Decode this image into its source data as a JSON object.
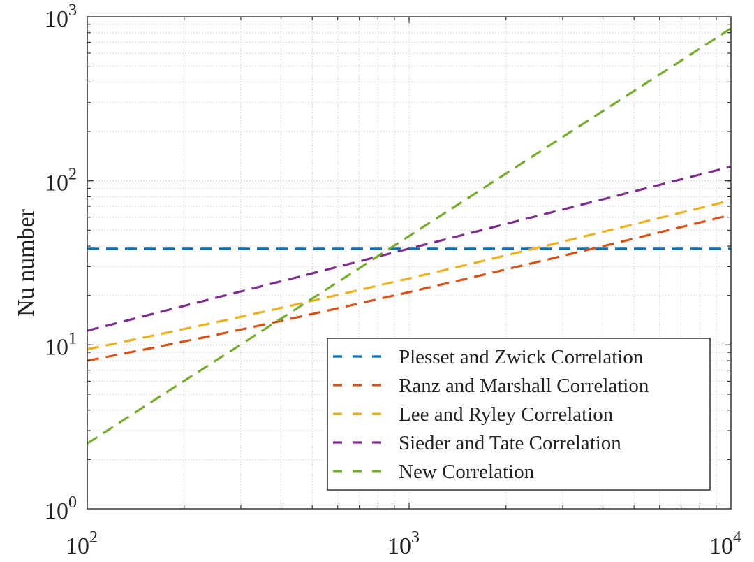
{
  "chart_data": {
    "type": "line",
    "title": "",
    "xlabel": "",
    "ylabel": "Nu number",
    "xscale": "log",
    "yscale": "log",
    "xlim": [
      100,
      10000
    ],
    "ylim": [
      1,
      1000
    ],
    "grid": true,
    "legend_position": "bottom-right",
    "x_ticks": [
      {
        "value": 100,
        "base": "10",
        "exp": "2"
      },
      {
        "value": 1000,
        "base": "10",
        "exp": "3"
      },
      {
        "value": 10000,
        "base": "10",
        "exp": "4"
      }
    ],
    "y_ticks": [
      {
        "value": 1,
        "base": "10",
        "exp": "0"
      },
      {
        "value": 10,
        "base": "10",
        "exp": "1"
      },
      {
        "value": 100,
        "base": "10",
        "exp": "2"
      },
      {
        "value": 1000,
        "base": "10",
        "exp": "3"
      }
    ],
    "x": [
      100,
      158,
      251,
      398,
      631,
      1000,
      1585,
      2512,
      3981,
      6310,
      10000
    ],
    "series": [
      {
        "name": "Plesset and Zwick Correlation",
        "color": "#0072BD",
        "values": [
          38.5,
          38.5,
          38.5,
          38.5,
          38.5,
          38.5,
          38.5,
          38.5,
          38.5,
          38.5,
          38.5
        ]
      },
      {
        "name": "Ranz and Marshall Correlation",
        "color": "#D95319",
        "values": [
          8.0,
          9.55,
          11.5,
          13.97,
          17.07,
          20.97,
          25.89,
          32.07,
          39.86,
          49.66,
          62.0
        ]
      },
      {
        "name": "Lee and Ryley Correlation",
        "color": "#EDB120",
        "values": [
          9.4,
          11.32,
          13.73,
          16.76,
          20.59,
          25.4,
          31.46,
          39.09,
          48.69,
          60.78,
          76.0
        ]
      },
      {
        "name": "Sieder and Tate Correlation",
        "color": "#7E2F8E",
        "values": [
          12.2,
          15.36,
          19.34,
          24.34,
          30.65,
          38.58,
          48.57,
          61.15,
          76.98,
          96.9,
          122
        ]
      },
      {
        "name": "New Correlation",
        "color": "#77AC30",
        "values": [
          2.5,
          4.48,
          8.02,
          14.36,
          25.72,
          46.07,
          82.5,
          147.8,
          264.7,
          474,
          849
        ]
      }
    ]
  }
}
